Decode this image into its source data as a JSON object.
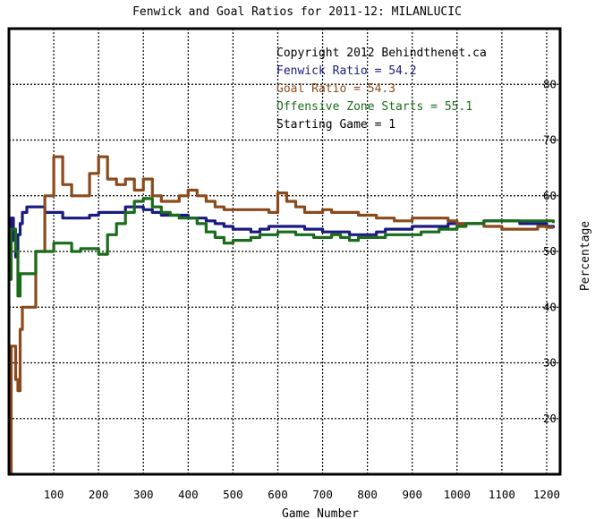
{
  "chart_data": {
    "type": "line",
    "title": "Fenwick and Goal Ratios for 2011-12: MILANLUCIC",
    "xlabel": "Game Number",
    "ylabel": "Percentage",
    "xlim": [
      0,
      1230
    ],
    "ylim": [
      10,
      90
    ],
    "x_ticks": [
      "100",
      "200",
      "300",
      "400",
      "500",
      "600",
      "700",
      "800",
      "900",
      "1000",
      "1100",
      "1200"
    ],
    "y_ticks": [
      "20",
      "30",
      "40",
      "50",
      "60",
      "70",
      "80"
    ],
    "grid": true,
    "legend_position": "top-right",
    "annotations": [
      {
        "text": "Copyright 2012 Behindthenet.ca",
        "color": "#000000"
      },
      {
        "text": "Fenwick Ratio = 54.2",
        "color": "#1a1a80"
      },
      {
        "text": "Goal Ratio = 54.3",
        "color": "#8b4a1c"
      },
      {
        "text": "Offensive Zone Starts = 55.1",
        "color": "#1a6b1a"
      },
      {
        "text": "Starting Game = 1",
        "color": "#000000"
      }
    ],
    "series": [
      {
        "name": "Fenwick Ratio",
        "color": "#1a1a80",
        "x": [
          1,
          5,
          10,
          15,
          20,
          25,
          30,
          40,
          60,
          80,
          100,
          120,
          140,
          160,
          180,
          200,
          220,
          240,
          260,
          280,
          300,
          320,
          340,
          360,
          380,
          400,
          420,
          440,
          460,
          480,
          500,
          520,
          540,
          560,
          580,
          600,
          620,
          640,
          660,
          680,
          700,
          720,
          740,
          760,
          780,
          800,
          820,
          840,
          860,
          880,
          900,
          920,
          940,
          960,
          980,
          1000,
          1020,
          1040,
          1060,
          1080,
          1100,
          1120,
          1140,
          1160,
          1180,
          1200,
          1215
        ],
        "y": [
          50,
          56,
          52,
          49,
          53,
          55,
          57,
          58,
          58,
          57,
          57,
          56,
          56,
          56,
          56.5,
          57,
          57,
          57,
          58,
          58,
          57.5,
          57,
          56.5,
          56.5,
          56.5,
          56,
          56,
          55.5,
          55,
          54.5,
          54,
          54,
          53.5,
          54,
          54.5,
          54.5,
          54.5,
          54.5,
          54,
          54,
          53.5,
          53.5,
          53.5,
          53,
          53,
          53,
          53.5,
          54,
          54,
          54,
          54.5,
          54.5,
          54.5,
          54.5,
          55,
          55,
          55,
          55,
          55.5,
          55.5,
          55.5,
          55.5,
          55,
          55,
          55,
          54.5,
          54.2
        ]
      },
      {
        "name": "Goal Ratio",
        "color": "#8b4a1c",
        "x": [
          1,
          5,
          10,
          15,
          20,
          25,
          30,
          40,
          60,
          80,
          100,
          120,
          140,
          160,
          180,
          200,
          220,
          240,
          260,
          280,
          300,
          320,
          340,
          360,
          380,
          400,
          420,
          440,
          460,
          480,
          500,
          520,
          540,
          560,
          580,
          600,
          620,
          640,
          660,
          680,
          700,
          720,
          740,
          760,
          780,
          800,
          820,
          840,
          860,
          880,
          900,
          920,
          940,
          960,
          980,
          1000,
          1020,
          1040,
          1060,
          1080,
          1100,
          1120,
          1140,
          1160,
          1180,
          1200,
          1215
        ],
        "y": [
          10,
          33,
          33,
          27,
          25,
          36,
          40,
          40,
          50,
          60,
          67,
          62,
          60,
          60,
          64,
          67,
          63,
          62,
          63,
          61,
          63,
          60,
          59,
          59,
          60,
          61,
          60,
          59,
          58,
          57.5,
          57.5,
          57.5,
          57.5,
          57.5,
          57,
          60.5,
          59,
          58,
          57,
          57,
          57.5,
          57,
          57,
          57,
          56.5,
          56.5,
          56,
          56,
          55.5,
          55.5,
          56,
          56,
          56,
          56,
          55.5,
          55,
          55,
          55,
          54.5,
          54.5,
          54,
          54,
          54,
          54,
          54.5,
          54.3,
          54.3
        ]
      },
      {
        "name": "Offensive Zone Starts",
        "color": "#1a6b1a",
        "x": [
          1,
          5,
          10,
          15,
          20,
          25,
          30,
          40,
          60,
          80,
          100,
          120,
          140,
          160,
          180,
          200,
          220,
          240,
          260,
          280,
          300,
          320,
          340,
          360,
          380,
          400,
          420,
          440,
          460,
          480,
          500,
          520,
          540,
          560,
          580,
          600,
          620,
          640,
          660,
          680,
          700,
          720,
          740,
          760,
          780,
          800,
          820,
          840,
          860,
          880,
          900,
          920,
          940,
          960,
          980,
          1000,
          1020,
          1040,
          1060,
          1080,
          1100,
          1120,
          1140,
          1160,
          1180,
          1200,
          1215
        ],
        "y": [
          45,
          54,
          54,
          50,
          42,
          46,
          46,
          46,
          50,
          50,
          51.5,
          51.5,
          50,
          50.5,
          50.5,
          49.5,
          53,
          55,
          57,
          59,
          59.5,
          58,
          57,
          56.5,
          56,
          56,
          55,
          53.5,
          52.5,
          51.5,
          52,
          52,
          52.5,
          53,
          53,
          53.5,
          53.5,
          53,
          53,
          52.5,
          52.5,
          53,
          52.5,
          52,
          52.5,
          52.5,
          52.5,
          53,
          53,
          53,
          53,
          53.5,
          53.5,
          54,
          54,
          54.5,
          55,
          55,
          55.5,
          55.5,
          55.5,
          55.5,
          55.5,
          55.5,
          55.5,
          55.5,
          55.1
        ]
      }
    ]
  }
}
